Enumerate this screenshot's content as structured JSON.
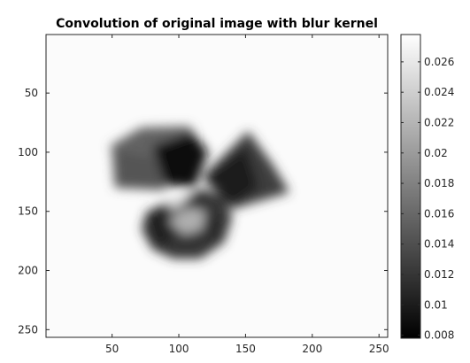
{
  "chart_data": {
    "type": "heatmap",
    "title": "Convolution of original image with blur kernel",
    "colormap": "gray",
    "background_value": 0.0275,
    "xlim": [
      0.5,
      256.5
    ],
    "ylim": [
      0.5,
      256.5
    ],
    "y_direction": "reverse",
    "x_ticks": [
      50,
      100,
      150,
      200,
      250
    ],
    "x_tick_labels": [
      "50",
      "100",
      "150",
      "200",
      "250"
    ],
    "y_ticks": [
      50,
      100,
      150,
      200,
      250
    ],
    "y_tick_labels": [
      "50",
      "100",
      "150",
      "200",
      "250"
    ],
    "colorbar": {
      "range": [
        0.0078,
        0.0278
      ],
      "ticks": [
        0.008,
        0.01,
        0.012,
        0.014,
        0.016,
        0.018,
        0.02,
        0.022,
        0.024,
        0.026
      ],
      "tick_labels": [
        "0.008",
        "0.01",
        "0.012",
        "0.014",
        "0.016",
        "0.018",
        "0.02",
        "0.022",
        "0.024",
        "0.026"
      ]
    },
    "blurred_shapes": [
      {
        "name": "cube-top-face",
        "points": [
          [
            48,
            95
          ],
          [
            72,
            79
          ],
          [
            108,
            78
          ],
          [
            116,
            92
          ],
          [
            88,
            107
          ],
          [
            54,
            103
          ]
        ],
        "value": 0.0155
      },
      {
        "name": "cube-front-face",
        "points": [
          [
            50,
            98
          ],
          [
            86,
            106
          ],
          [
            90,
            132
          ],
          [
            52,
            130
          ]
        ],
        "value": 0.0145
      },
      {
        "name": "cube-dark-side",
        "points": [
          [
            80,
            95
          ],
          [
            110,
            83
          ],
          [
            122,
            100
          ],
          [
            112,
            130
          ],
          [
            90,
            128
          ]
        ],
        "value": 0.009
      },
      {
        "name": "cone-body",
        "points": [
          [
            120,
            118
          ],
          [
            152,
            82
          ],
          [
            170,
            110
          ],
          [
            183,
            134
          ],
          [
            140,
            148
          ]
        ],
        "value": 0.0125
      },
      {
        "name": "cone-shadow",
        "points": [
          [
            118,
            122
          ],
          [
            150,
            95
          ],
          [
            160,
            130
          ],
          [
            140,
            146
          ]
        ],
        "value": 0.01
      },
      {
        "name": "torus-outer",
        "points": [
          [
            98,
            140
          ],
          [
            118,
            131
          ],
          [
            134,
            138
          ],
          [
            140,
            155
          ],
          [
            134,
            176
          ],
          [
            116,
            190
          ],
          [
            96,
            190
          ],
          [
            80,
            182
          ],
          [
            72,
            165
          ],
          [
            76,
            150
          ]
        ],
        "value": 0.012
      },
      {
        "name": "torus-dark-band",
        "points": [
          [
            75,
            155
          ],
          [
            92,
            145
          ],
          [
            102,
            153
          ],
          [
            96,
            168
          ],
          [
            90,
            180
          ],
          [
            80,
            175
          ]
        ],
        "value": 0.0105
      },
      {
        "name": "torus-light-center",
        "points": [
          [
            92,
            158
          ],
          [
            106,
            147
          ],
          [
            120,
            150
          ],
          [
            118,
            165
          ],
          [
            104,
            170
          ]
        ],
        "value": 0.0215
      },
      {
        "name": "torus-bright-rim",
        "points": [
          [
            92,
            145
          ],
          [
            104,
            136
          ],
          [
            112,
            132
          ],
          [
            104,
            142
          ],
          [
            96,
            150
          ]
        ],
        "value": 0.025
      },
      {
        "name": "torus-inner-dark",
        "points": [
          [
            118,
            158
          ],
          [
            128,
            152
          ],
          [
            132,
            168
          ],
          [
            120,
            176
          ]
        ],
        "value": 0.011
      }
    ]
  }
}
